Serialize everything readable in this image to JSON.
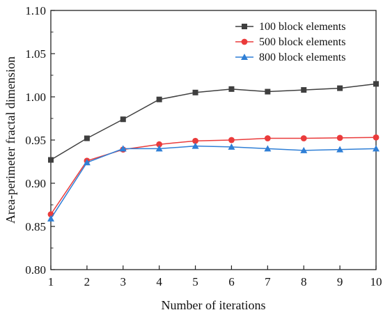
{
  "chart_data": {
    "type": "line",
    "title": "",
    "xlabel": "Number of iterations",
    "ylabel": "Area-perimeter fractal dimension",
    "x": [
      1,
      2,
      3,
      4,
      5,
      6,
      7,
      8,
      9,
      10
    ],
    "xlim": [
      1,
      10
    ],
    "ylim": [
      0.8,
      1.1
    ],
    "x_ticks": [
      "1",
      "2",
      "3",
      "4",
      "5",
      "6",
      "7",
      "8",
      "9",
      "10"
    ],
    "y_ticks": [
      "0.80",
      "0.85",
      "0.90",
      "0.95",
      "1.00",
      "1.05",
      "1.10"
    ],
    "grid": false,
    "legend_position": "top-right",
    "series": [
      {
        "name": "100 block elements",
        "marker": "square",
        "color": "#3f3f3f",
        "values": [
          0.927,
          0.952,
          0.974,
          0.997,
          1.005,
          1.009,
          1.006,
          1.008,
          1.01,
          1.015
        ]
      },
      {
        "name": "500 block elements",
        "marker": "circle",
        "color": "#ea3b3b",
        "values": [
          0.864,
          0.926,
          0.939,
          0.945,
          0.949,
          0.95,
          0.952,
          0.952,
          0.9525,
          0.953
        ]
      },
      {
        "name": "800 block elements",
        "marker": "triangle",
        "color": "#2f7fd6",
        "values": [
          0.859,
          0.924,
          0.94,
          0.94,
          0.943,
          0.942,
          0.94,
          0.938,
          0.939,
          0.94
        ]
      }
    ]
  }
}
